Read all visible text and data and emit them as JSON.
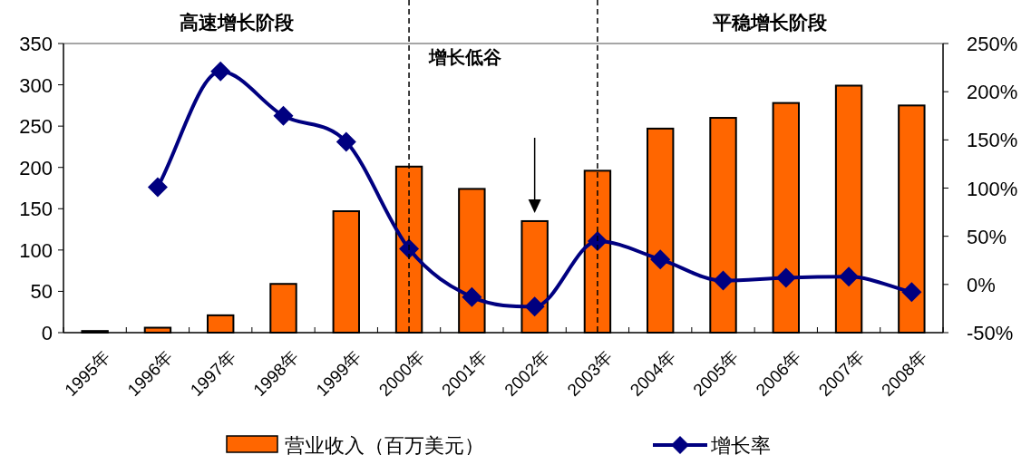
{
  "chart_data": {
    "type": "bar",
    "categories": [
      "1995年",
      "1996年",
      "1997年",
      "1998年",
      "1999年",
      "2000年",
      "2001年",
      "2002年",
      "2003年",
      "2004年",
      "2005年",
      "2006年",
      "2007年",
      "2008年"
    ],
    "series": [
      {
        "name": "营业收入（百万美元）",
        "color": "#ff6600",
        "values": [
          2,
          6,
          21,
          59,
          147,
          201,
          174,
          135,
          196,
          247,
          260,
          278,
          299,
          275
        ]
      },
      {
        "name": "增长率",
        "type": "line",
        "axis": "y2",
        "color": "#000080",
        "marker": "diamond",
        "values": [
          null,
          101,
          221,
          175,
          148,
          37,
          -13,
          -23,
          45,
          26,
          4,
          7,
          8,
          -8
        ]
      }
    ],
    "ylim": [
      0,
      350
    ],
    "yticks": [
      0,
      50,
      100,
      150,
      200,
      250,
      300,
      350
    ],
    "y2lim": [
      -50,
      250
    ],
    "y2ticks": [
      {
        "value": -50,
        "label": "-50%"
      },
      {
        "value": 0,
        "label": "0%"
      },
      {
        "value": 50,
        "label": "50%"
      },
      {
        "value": 100,
        "label": "100%"
      },
      {
        "value": 150,
        "label": "150%"
      },
      {
        "value": 200,
        "label": "200%"
      },
      {
        "value": 250,
        "label": "250%"
      }
    ],
    "ref_lines": [
      {
        "axis": "x",
        "value": "2000年",
        "color": "#000000",
        "line_style": "dashed"
      },
      {
        "axis": "x",
        "value": "2003年",
        "color": "#000000",
        "line_style": "dashed"
      }
    ],
    "annotations": [
      "高速增长阶段",
      "平稳增长阶段",
      "增长低谷"
    ],
    "legend": "bottom",
    "grid": false
  }
}
